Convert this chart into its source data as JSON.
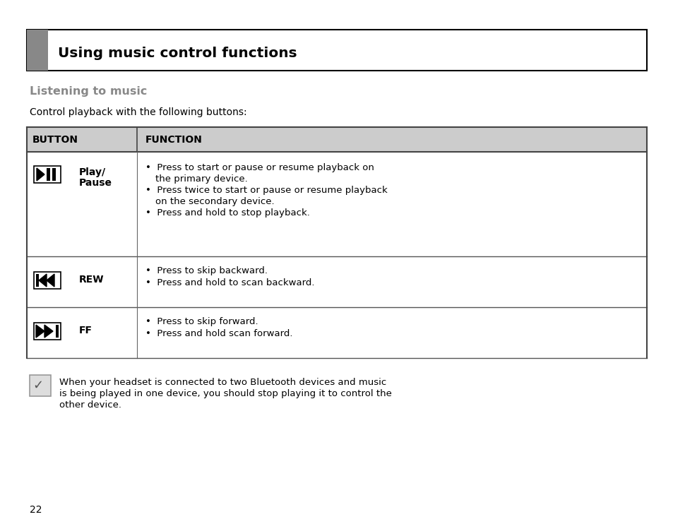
{
  "page_bg": "#ffffff",
  "title_box_text": "Using music control functions",
  "title_accent_color": "#888888",
  "section_title": "Listening to music",
  "section_title_color": "#888888",
  "intro_text": "Control playback with the following buttons:",
  "table_header_bg": "#cccccc",
  "table_header_button": "BUTTON",
  "table_header_function": "FUNCTION",
  "table_row1_label_line1": "Play/",
  "table_row1_label_line2": "Pause",
  "table_row1_bullets": [
    "Press to start or pause or resume playback on",
    "  the primary device.",
    "Press twice to start or pause or resume playback",
    "  on the secondary device.",
    "Press and hold to stop playback."
  ],
  "table_row1_bullet_flags": [
    true,
    false,
    true,
    false,
    true
  ],
  "table_row2_label": "REW",
  "table_row2_bullets": [
    "Press to skip backward.",
    "Press and hold to scan backward."
  ],
  "table_row3_label": "FF",
  "table_row3_bullets": [
    "Press to skip forward.",
    "Press and hold scan forward."
  ],
  "note_line1": "When your headset is connected to two Bluetooth devices and music",
  "note_line2": "is being played in one device, you should stop playing it to control the",
  "note_line3": "other device.",
  "page_number": "22",
  "text_color": "#000000",
  "table_line_color": "#555555",
  "bullet_char": "•"
}
